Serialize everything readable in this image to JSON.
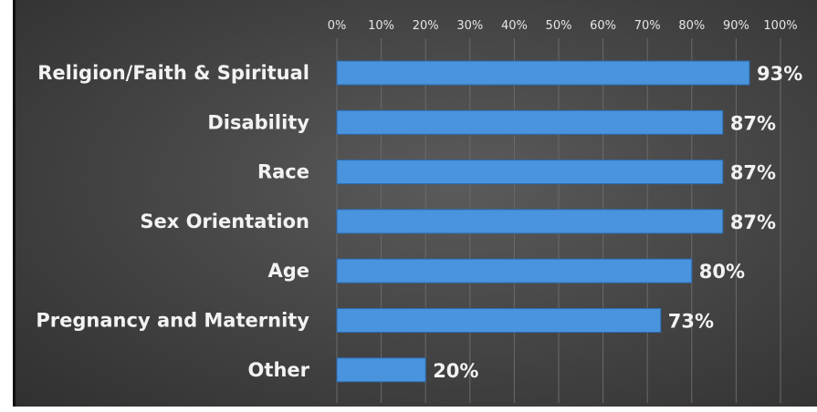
{
  "chart_data": {
    "type": "bar",
    "orientation": "horizontal",
    "categories": [
      "Religion/Faith & Spiritual",
      "Disability",
      "Race",
      "Sex Orientation",
      "Age",
      "Pregnancy and Maternity",
      "Other"
    ],
    "values": [
      93,
      87,
      87,
      87,
      80,
      73,
      20
    ],
    "data_labels": [
      "93%",
      "87%",
      "87%",
      "87%",
      "80%",
      "73%",
      "20%"
    ],
    "x_ticks": [
      "0%",
      "10%",
      "20%",
      "30%",
      "40%",
      "50%",
      "60%",
      "70%",
      "80%",
      "90%",
      "100%"
    ],
    "xlim": [
      0,
      100
    ],
    "x_axis_position": "top",
    "grid": true,
    "bar_color": "#4a93dd",
    "background_color": "#474747"
  }
}
